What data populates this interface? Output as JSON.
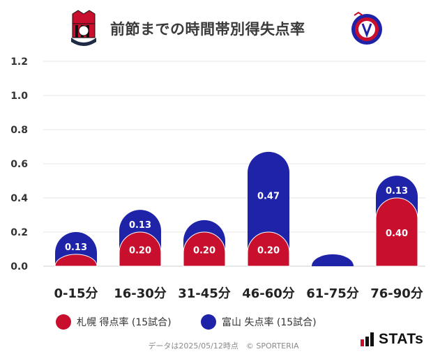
{
  "title": "前節までの時間帯別得失点率",
  "legend": [
    {
      "label": "札幌 得点率 (15試合)",
      "color": "#c8102e"
    },
    {
      "label": "富山 失点率 (15試合)",
      "color": "#1f23a8"
    }
  ],
  "footer": "データは2025/05/12時点　© SPORTERIA",
  "brand": "STATs",
  "chart_data": {
    "type": "bar",
    "stacked": true,
    "categories": [
      "0-15分",
      "16-30分",
      "31-45分",
      "46-60分",
      "61-75分",
      "76-90分"
    ],
    "series": [
      {
        "name": "札幌 得点率 (15試合)",
        "color": "#c8102e",
        "values": [
          0.07,
          0.2,
          0.2,
          0.2,
          0.0,
          0.4
        ],
        "labels": [
          "",
          "0.20",
          "0.20",
          "0.20",
          "",
          "0.40"
        ]
      },
      {
        "name": "富山 失点率 (15試合)",
        "color": "#1f23a8",
        "values": [
          0.13,
          0.13,
          0.07,
          0.47,
          0.07,
          0.13
        ],
        "labels": [
          "0.13",
          "0.13",
          "",
          "0.47",
          "",
          "0.13"
        ]
      }
    ],
    "ylim": [
      0,
      1.2
    ],
    "yticks": [
      "0.0",
      "0.2",
      "0.4",
      "0.6",
      "0.8",
      "1.0",
      "1.2"
    ],
    "grid": true,
    "legend_position": "bottom-left"
  }
}
